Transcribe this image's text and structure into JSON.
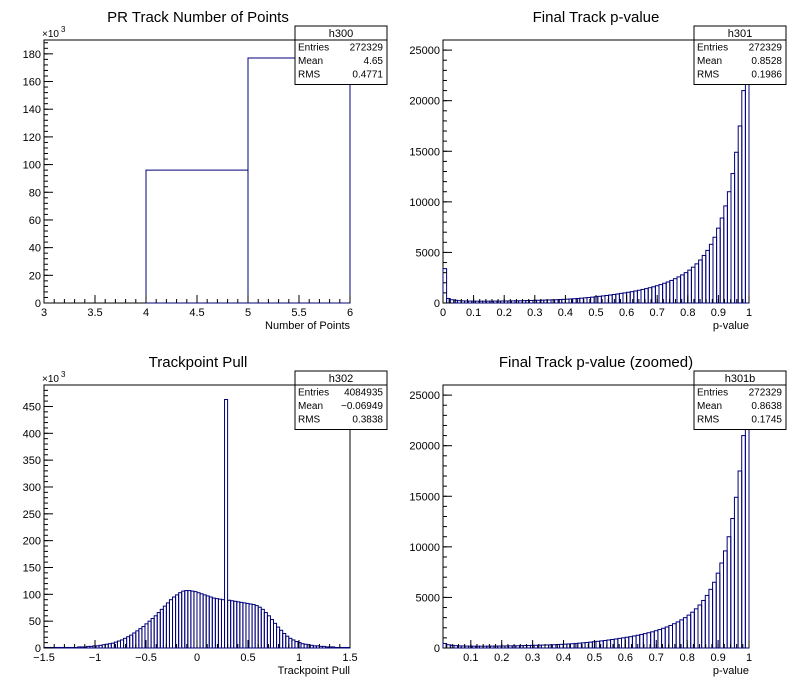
{
  "chart_data": [
    {
      "type": "bar",
      "title": "PR Track Number of Points",
      "xlabel": "Number of Points",
      "ylabel": "",
      "exponent_label": "×10",
      "exponent": "3",
      "xlim": [
        3,
        6
      ],
      "ylim": [
        0,
        190
      ],
      "xticks": [
        3,
        3.5,
        4,
        4.5,
        5,
        5.5,
        6
      ],
      "xtick_labels": [
        "3",
        "3.5",
        "4",
        "4.5",
        "5",
        "5.5",
        "6"
      ],
      "yticks": [
        0,
        20,
        40,
        60,
        80,
        100,
        120,
        140,
        160,
        180
      ],
      "ytick_labels": [
        "0",
        "20",
        "40",
        "60",
        "80",
        "100",
        "120",
        "140",
        "160",
        "180"
      ],
      "bin_edges": [
        3,
        4,
        5,
        6
      ],
      "values": [
        0,
        96,
        177
      ],
      "stats": {
        "name": "h300",
        "rows": [
          {
            "label": "Entries",
            "value": "272329"
          },
          {
            "label": "Mean",
            "value": "4.65"
          },
          {
            "label": "RMS",
            "value": "0.4771"
          }
        ]
      }
    },
    {
      "type": "bar",
      "title": "Final Track p-value",
      "xlabel": "p-value",
      "ylabel": "",
      "xlim": [
        0,
        1
      ],
      "ylim": [
        0,
        26000
      ],
      "xticks": [
        0,
        0.1,
        0.2,
        0.3,
        0.4,
        0.5,
        0.6,
        0.7,
        0.8,
        0.9,
        1
      ],
      "xtick_labels": [
        "0",
        "0.1",
        "0.2",
        "0.3",
        "0.4",
        "0.5",
        "0.6",
        "0.7",
        "0.8",
        "0.9",
        "1"
      ],
      "yticks": [
        0,
        5000,
        10000,
        15000,
        20000,
        25000
      ],
      "ytick_labels": [
        "0",
        "5000",
        "10000",
        "15000",
        "20000",
        "25000"
      ],
      "bin_range": [
        0,
        1
      ],
      "values": [
        3400,
        450,
        320,
        270,
        230,
        210,
        200,
        190,
        185,
        180,
        180,
        180,
        180,
        185,
        190,
        190,
        195,
        200,
        205,
        210,
        215,
        220,
        230,
        240,
        250,
        260,
        270,
        280,
        290,
        300,
        310,
        320,
        340,
        360,
        380,
        400,
        420,
        450,
        480,
        510,
        540,
        580,
        620,
        660,
        700,
        740,
        790,
        840,
        890,
        950,
        1000,
        1060,
        1120,
        1190,
        1260,
        1340,
        1420,
        1510,
        1600,
        1710,
        1820,
        1950,
        2080,
        2230,
        2400,
        2580,
        2780,
        3000,
        3250,
        3540,
        3870,
        4250,
        4700,
        5200,
        5800,
        6500,
        7400,
        8400,
        9600,
        11000,
        12800,
        14900,
        17500,
        21000,
        25500
      ],
      "stats": {
        "name": "h301",
        "rows": [
          {
            "label": "Entries",
            "value": "272329"
          },
          {
            "label": "Mean",
            "value": "0.8528"
          },
          {
            "label": "RMS",
            "value": "0.1986"
          }
        ]
      }
    },
    {
      "type": "bar",
      "title": "Trackpoint Pull",
      "xlabel": "Trackpoint Pull",
      "ylabel": "",
      "exponent_label": "×10",
      "exponent": "3",
      "xlim": [
        -1.5,
        1.5
      ],
      "ylim": [
        0,
        490
      ],
      "xticks": [
        -1.5,
        -1,
        -0.5,
        0,
        0.5,
        1,
        1.5
      ],
      "xtick_labels": [
        "−1.5",
        "−1",
        "−0.5",
        "0",
        "0.5",
        "1",
        "1.5"
      ],
      "yticks": [
        0,
        50,
        100,
        150,
        200,
        250,
        300,
        350,
        400,
        450
      ],
      "ytick_labels": [
        "0",
        "50",
        "100",
        "150",
        "200",
        "250",
        "300",
        "350",
        "400",
        "450"
      ],
      "bin_range": [
        -1.5,
        1.5
      ],
      "values": [
        1,
        1,
        1,
        1,
        1,
        1,
        1,
        1,
        1,
        1,
        1,
        2,
        2,
        2,
        3,
        3,
        4,
        4,
        5,
        6,
        7,
        8,
        9,
        11,
        13,
        15,
        18,
        21,
        24,
        28,
        32,
        36,
        40,
        45,
        50,
        55,
        60,
        66,
        72,
        78,
        84,
        90,
        95,
        99,
        103,
        106,
        107,
        107,
        106,
        105,
        103,
        101,
        99,
        97,
        95,
        93,
        92,
        91,
        90,
        463,
        89,
        88,
        87,
        86,
        85,
        84,
        83,
        82,
        81,
        79,
        76,
        72,
        66,
        60,
        53,
        46,
        39,
        33,
        27,
        22,
        18,
        15,
        12,
        10,
        8,
        7,
        6,
        5,
        4,
        4,
        3,
        3,
        2,
        2,
        2,
        1,
        1,
        1,
        1,
        1
      ],
      "stats": {
        "name": "h302",
        "rows": [
          {
            "label": "Entries",
            "value": "4084935"
          },
          {
            "label": "Mean",
            "value": "−0.06949"
          },
          {
            "label": "RMS",
            "value": "0.3838"
          }
        ]
      }
    },
    {
      "type": "bar",
      "title": "Final Track p-value (zoomed)",
      "xlabel": "p-value",
      "ylabel": "",
      "xlim": [
        0.01,
        1
      ],
      "ylim": [
        0,
        26000
      ],
      "xticks": [
        0.1,
        0.2,
        0.3,
        0.4,
        0.5,
        0.6,
        0.7,
        0.8,
        0.9,
        1
      ],
      "xtick_labels": [
        "0.1",
        "0.2",
        "0.3",
        "0.4",
        "0.5",
        "0.6",
        "0.7",
        "0.8",
        "0.9",
        "1"
      ],
      "yticks": [
        0,
        5000,
        10000,
        15000,
        20000,
        25000
      ],
      "ytick_labels": [
        "0",
        "5000",
        "10000",
        "15000",
        "20000",
        "25000"
      ],
      "bin_range": [
        0.01,
        1
      ],
      "values": [
        450,
        320,
        270,
        230,
        210,
        200,
        190,
        185,
        180,
        180,
        180,
        180,
        185,
        190,
        190,
        195,
        200,
        205,
        210,
        215,
        220,
        230,
        240,
        250,
        260,
        270,
        280,
        290,
        300,
        310,
        320,
        340,
        360,
        380,
        400,
        420,
        450,
        480,
        510,
        540,
        580,
        620,
        660,
        700,
        740,
        790,
        840,
        890,
        950,
        1000,
        1060,
        1120,
        1190,
        1260,
        1340,
        1420,
        1510,
        1600,
        1710,
        1820,
        1950,
        2080,
        2230,
        2400,
        2580,
        2780,
        3000,
        3250,
        3540,
        3870,
        4250,
        4700,
        5200,
        5800,
        6500,
        7400,
        8400,
        9600,
        11000,
        12800,
        14900,
        17500,
        21000,
        25500
      ],
      "stats": {
        "name": "h301b",
        "rows": [
          {
            "label": "Entries",
            "value": "272329"
          },
          {
            "label": "Mean",
            "value": "0.8638"
          },
          {
            "label": "RMS",
            "value": "0.1745"
          }
        ]
      }
    }
  ]
}
